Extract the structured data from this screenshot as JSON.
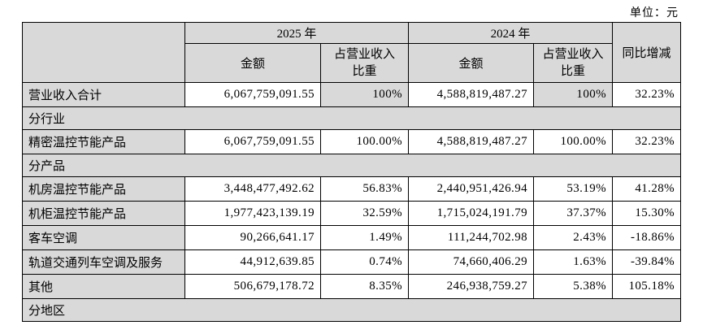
{
  "unit_label": "单位：元",
  "colors": {
    "shaded_bg": "#d9d9d9",
    "cell_bg": "#ffffff",
    "border": "#000000",
    "text": "#000000"
  },
  "table": {
    "year_headers": [
      "2025 年",
      "2024 年"
    ],
    "sub_headers": [
      "金额",
      "占营业收入\n比重",
      "金额",
      "占营业收入\n比重"
    ],
    "yoy_label": "同比增减",
    "rows": [
      {
        "type": "data",
        "label": "营业收入合计",
        "cells": [
          "6,067,759,091.55",
          "100%",
          "4,588,819,487.27",
          "100%",
          "32.23%"
        ],
        "shaded_cells": [
          1,
          3
        ]
      },
      {
        "type": "section",
        "label": "分行业"
      },
      {
        "type": "data",
        "label": "精密温控节能产品",
        "cells": [
          "6,067,759,091.55",
          "100.00%",
          "4,588,819,487.27",
          "100.00%",
          "32.23%"
        ],
        "shaded_cells": []
      },
      {
        "type": "section",
        "label": "分产品"
      },
      {
        "type": "data",
        "label": "机房温控节能产品",
        "cells": [
          "3,448,477,492.62",
          "56.83%",
          "2,440,951,426.94",
          "53.19%",
          "41.28%"
        ],
        "shaded_cells": []
      },
      {
        "type": "data",
        "label": "机柜温控节能产品",
        "cells": [
          "1,977,423,139.19",
          "32.59%",
          "1,715,024,191.79",
          "37.37%",
          "15.30%"
        ],
        "shaded_cells": []
      },
      {
        "type": "data",
        "label": "客车空调",
        "cells": [
          "90,266,641.17",
          "1.49%",
          "111,244,702.98",
          "2.43%",
          "-18.86%"
        ],
        "shaded_cells": []
      },
      {
        "type": "data",
        "label": "轨道交通列车空调及服务",
        "cells": [
          "44,912,639.85",
          "0.74%",
          "74,660,406.29",
          "1.63%",
          "-39.84%"
        ],
        "shaded_cells": []
      },
      {
        "type": "data",
        "label": "其他",
        "cells": [
          "506,679,178.72",
          "8.35%",
          "246,938,759.27",
          "5.38%",
          "105.18%"
        ],
        "shaded_cells": []
      },
      {
        "type": "section",
        "label": "分地区"
      }
    ]
  }
}
